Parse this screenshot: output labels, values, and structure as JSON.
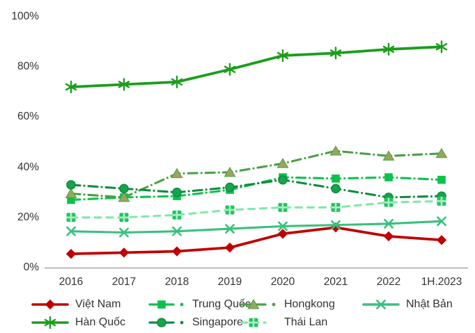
{
  "chart_data": {
    "type": "line",
    "title": "",
    "xlabel": "",
    "ylabel": "",
    "x_categories": [
      "2016",
      "2017",
      "2018",
      "2019",
      "2020",
      "2021",
      "2022",
      "1H.2023"
    ],
    "y_ticks": [
      {
        "label": "0%",
        "value": 0
      },
      {
        "label": "20%",
        "value": 20
      },
      {
        "label": "40%",
        "value": 40
      },
      {
        "label": "60%",
        "value": 60
      },
      {
        "label": "80%",
        "value": 80
      },
      {
        "label": "100%",
        "value": 100
      }
    ],
    "ylim": [
      0,
      100
    ],
    "grid": false,
    "legend_position": "bottom",
    "axis_color": "#A6A6A6",
    "text_color": "#333333",
    "series": [
      {
        "name": "Việt Nam",
        "color": "#C00000",
        "marker": "diamond",
        "marker_fill": "#C00000",
        "line_style": "solid",
        "values": [
          5.5,
          6,
          6.5,
          8,
          13.5,
          16,
          12.5,
          11
        ]
      },
      {
        "name": "Trung Quốc",
        "color": "#0CC24C",
        "marker": "square",
        "marker_fill": "#0CC24C",
        "line_style": "dashdot",
        "values": [
          27,
          28,
          28.5,
          31,
          36,
          35.5,
          36,
          35
        ]
      },
      {
        "name": "Hongkong",
        "color": "#4AA045",
        "marker": "triangle",
        "marker_fill": "#9AA55C",
        "line_style": "dashdot",
        "values": [
          29.5,
          28,
          37.5,
          38,
          41.5,
          46.5,
          44.5,
          45.5
        ]
      },
      {
        "name": "Nhật Bản",
        "color": "#38C17E",
        "marker": "x",
        "marker_fill": "#38C17E",
        "line_style": "solid",
        "values": [
          14.5,
          14,
          14.5,
          15.5,
          16.5,
          17,
          17.5,
          18.5
        ]
      },
      {
        "name": "Hàn Quốc",
        "color": "#1B9E1B",
        "marker": "asterisk",
        "marker_fill": "#1B9E1B",
        "line_style": "solid",
        "values": [
          72,
          73,
          74,
          79,
          84.5,
          85.5,
          87,
          88
        ]
      },
      {
        "name": "Singapore",
        "color": "#0F8C3E",
        "marker": "circle",
        "marker_fill": "#17A44D",
        "line_style": "dashdot",
        "values": [
          33,
          31.5,
          30,
          32,
          35,
          31.5,
          28,
          28.5
        ]
      },
      {
        "name": "Thái Lan",
        "color": "#7FE9A9",
        "marker": "square-cross",
        "marker_fill": "#25C161",
        "line_style": "dashed",
        "values": [
          20,
          20,
          21,
          23,
          24,
          24,
          26,
          26.5
        ]
      }
    ],
    "legend_rows": [
      [
        0,
        1,
        2,
        3
      ],
      [
        4,
        5,
        6
      ]
    ]
  }
}
